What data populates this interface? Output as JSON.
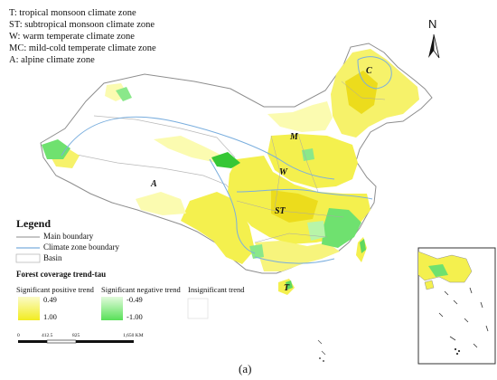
{
  "zones_key": [
    "T: tropical monsoon climate zone",
    "ST: subtropical monsoon climate zone",
    "W: warm temperate climate zone",
    "MC: mild-cold temperate climate zone",
    "A: alpine climate zone"
  ],
  "north_label": "N",
  "zone_labels": {
    "c": "C",
    "m": "M",
    "w": "W",
    "a": "A",
    "st": "ST",
    "t": "T"
  },
  "legend": {
    "title": "Legend",
    "main_boundary": "Main boundary",
    "climate_boundary": "Climate zone boundary",
    "basin": "Basin"
  },
  "trend": {
    "title": "Forest coverage trend-tau",
    "positive": {
      "label": "Significant positive trend",
      "top": "0.49",
      "bottom": "1.00"
    },
    "negative": {
      "label": "Significant negative trend",
      "top": "-0.49",
      "bottom": "-1.00"
    },
    "insignificant": {
      "label": "Insignificant trend"
    }
  },
  "scale": {
    "t0": "0",
    "t1": "412.5",
    "t2": "825",
    "t3": "1,650 KM"
  },
  "caption": "(a)",
  "colors": {
    "yellow_light": "#fbfbb0",
    "yellow": "#f4f04e",
    "yellow_dark": "#ecdc1c",
    "green": "#6fe16f",
    "green_light": "#b8f5a8",
    "climate_line": "#7aaede",
    "boundary": "#9a9a9a"
  }
}
